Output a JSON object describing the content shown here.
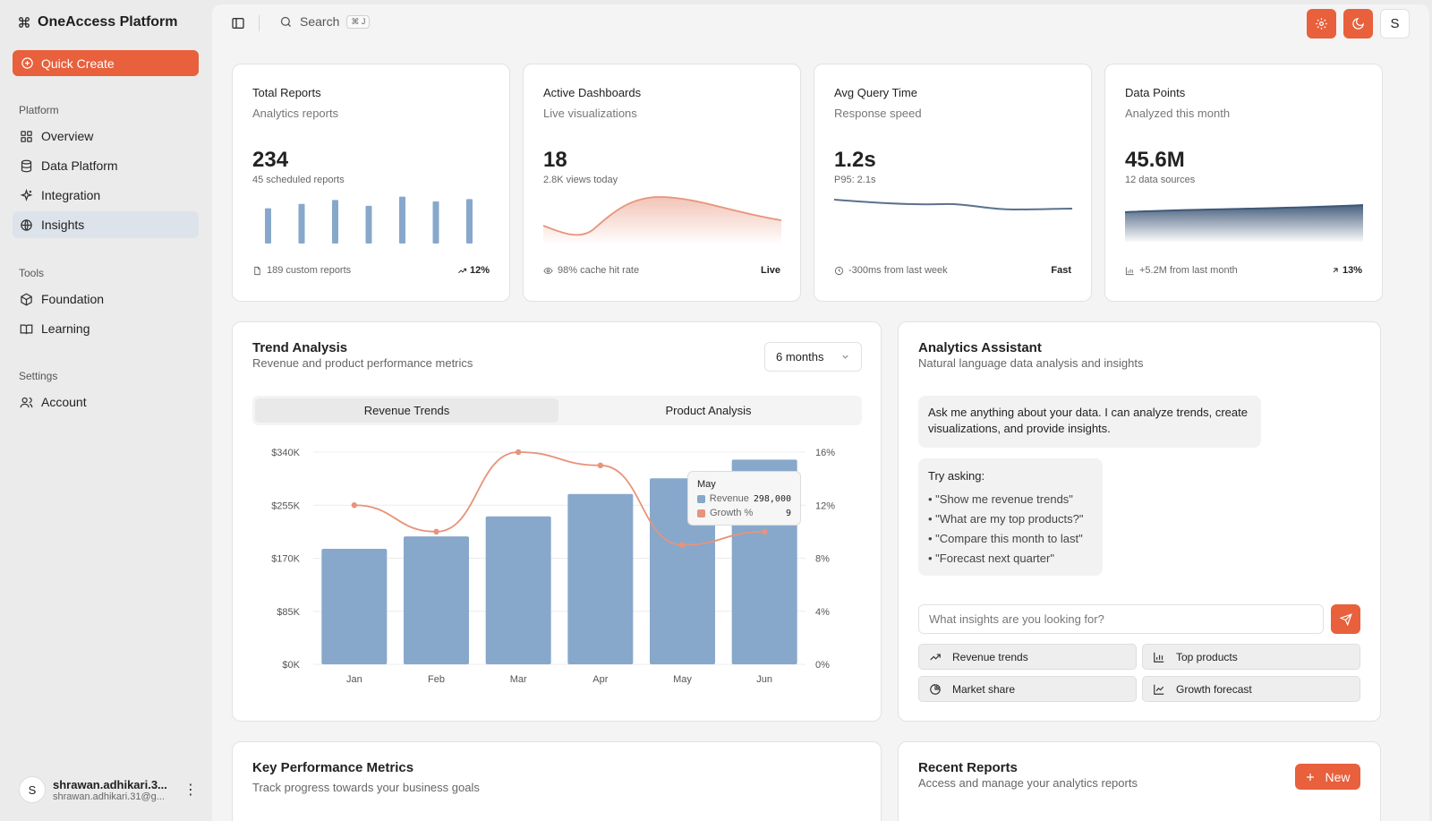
{
  "sidebar": {
    "brand": "OneAccess Platform",
    "quick_create": "Quick Create",
    "sections": {
      "platform": "Platform",
      "tools": "Tools",
      "settings": "Settings"
    },
    "items": {
      "overview": "Overview",
      "data_platform": "Data Platform",
      "integration": "Integration",
      "insights": "Insights",
      "foundation": "Foundation",
      "learning": "Learning",
      "account": "Account"
    },
    "user": {
      "initial": "S",
      "name": "shrawan.adhikari.3...",
      "email": "shrawan.adhikari.31@g..."
    }
  },
  "topbar": {
    "search_label": "Search",
    "shortcut": "⌘ J",
    "avatar_initial": "S"
  },
  "stats": [
    {
      "title": "Total Reports",
      "subtitle": "Analytics reports",
      "value": "234",
      "note": "45 scheduled reports",
      "footer": "189 custom reports",
      "badge": "12%",
      "bars": [
        0.73,
        0.82,
        0.9,
        0.78,
        0.97,
        0.87,
        0.92
      ]
    },
    {
      "title": "Active Dashboards",
      "subtitle": "Live visualizations",
      "value": "18",
      "note": "2.8K views today",
      "footer": "98% cache hit rate",
      "badge": "Live"
    },
    {
      "title": "Avg Query Time",
      "subtitle": "Response speed",
      "value": "1.2s",
      "note": "P95: 2.1s",
      "footer": "-300ms from last week",
      "badge": "Fast"
    },
    {
      "title": "Data Points",
      "subtitle": "Analyzed this month",
      "value": "45.6M",
      "note": "12 data sources",
      "footer": "+5.2M from last month",
      "badge": "13%"
    }
  ],
  "trend": {
    "title": "Trend Analysis",
    "subtitle": "Revenue and product performance metrics",
    "range": "6 months",
    "tabs": [
      "Revenue Trends",
      "Product Analysis"
    ],
    "tooltip": {
      "month": "May",
      "revenue_label": "Revenue",
      "revenue_value": "298,000",
      "growth_label": "Growth %",
      "growth_value": "9"
    }
  },
  "chart_data": {
    "type": "bar",
    "categories": [
      "Jan",
      "Feb",
      "Mar",
      "Apr",
      "May",
      "Jun"
    ],
    "series": [
      {
        "name": "Revenue",
        "type": "bar",
        "axis": "left",
        "values": [
          185000,
          205000,
          237000,
          273000,
          298000,
          328000
        ]
      },
      {
        "name": "Growth %",
        "type": "line",
        "axis": "right",
        "values": [
          12,
          10,
          16,
          15,
          9,
          10
        ]
      }
    ],
    "y_left": {
      "ticks": [
        "$0K",
        "$85K",
        "$170K",
        "$255K",
        "$340K"
      ],
      "range": [
        0,
        340000
      ]
    },
    "y_right": {
      "ticks": [
        "0%",
        "4%",
        "8%",
        "12%",
        "16%"
      ],
      "range": [
        0,
        16
      ]
    },
    "colors": {
      "bar": "#87a8cb",
      "line": "#e8937b"
    }
  },
  "assistant": {
    "title": "Analytics Assistant",
    "subtitle": "Natural language data analysis and insights",
    "intro": "Ask me anything about your data. I can analyze trends, create visualizations, and provide insights.",
    "try_title": "Try asking:",
    "suggestions": [
      "• \"Show me revenue trends\"",
      "• \"What are my top products?\"",
      "• \"Compare this month to last\"",
      "• \"Forecast next quarter\""
    ],
    "placeholder": "What insights are you looking for?",
    "quick": [
      "Revenue trends",
      "Top products",
      "Market share",
      "Growth forecast"
    ]
  },
  "kpi": {
    "title": "Key Performance Metrics",
    "subtitle": "Track progress towards your business goals"
  },
  "reports": {
    "title": "Recent Reports",
    "subtitle": "Access and manage your analytics reports",
    "new_label": "New"
  },
  "colors": {
    "accent": "#e8603c",
    "bar": "#87a8cb",
    "line": "#e8937b",
    "slate": "#5a718f"
  }
}
